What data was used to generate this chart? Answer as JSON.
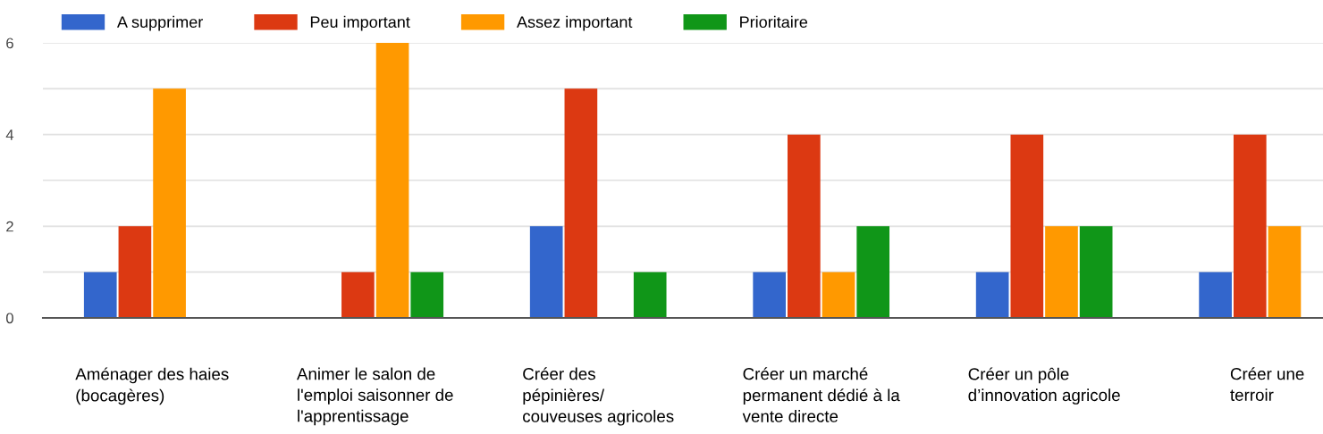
{
  "chart_data": {
    "type": "bar",
    "categories": [
      "Aménager des haies\n(bocagères)",
      "Animer le salon de\nl'emploi saisonner de\nl'apprentissage",
      "Créer des\npépinières/\ncouveuses agricoles",
      "Créer un marché\npermanent dédié à la\nvente directe",
      "Créer un pôle\nd’innovation agricole",
      "Créer une\nterroir"
    ],
    "series": [
      {
        "name": "A supprimer",
        "color": "#3366cc",
        "values": [
          1,
          0,
          2,
          1,
          1,
          1
        ]
      },
      {
        "name": "Peu important",
        "color": "#dc3912",
        "values": [
          2,
          1,
          5,
          4,
          4,
          4
        ]
      },
      {
        "name": "Assez important",
        "color": "#ff9900",
        "values": [
          5,
          6,
          0,
          1,
          2,
          2
        ]
      },
      {
        "name": "Prioritaire",
        "color": "#109618",
        "values": [
          0,
          1,
          1,
          2,
          2,
          null
        ]
      }
    ],
    "ylim": [
      0,
      6
    ],
    "yticks": [
      0,
      {
        "value": 1,
        "label": null
      },
      2,
      {
        "value": 3,
        "label": null
      },
      4,
      {
        "value": 5,
        "label": null
      },
      6
    ],
    "grid": "y",
    "legend": "top left"
  }
}
